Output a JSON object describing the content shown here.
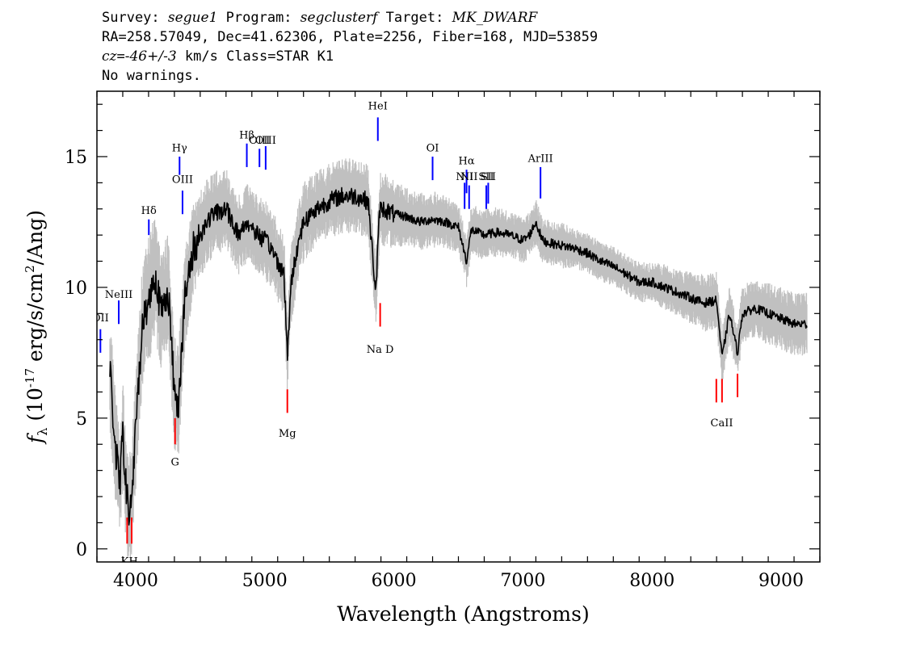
{
  "header": {
    "survey_label": "Survey:",
    "survey": "segue1",
    "program_label": "Program:",
    "program": "segclusterf",
    "target_label": "Target:",
    "target": "MK_DWARF",
    "line2": "RA=258.57049, Dec=41.62306, Plate=2256, Fiber=168, MJD=53859",
    "cz_label": "cz",
    "cz_eq": "=",
    "cz_value": "-46+/-3",
    "cz_unit": " km/s Class=STAR K1",
    "warnings": "No warnings."
  },
  "chart_data": {
    "type": "line",
    "xlabel": "Wavelength (Angstroms)",
    "ylabel": "f_λ (10^-17 erg/s/cm^2/Ang)",
    "xlim": [
      3700,
      9300
    ],
    "ylim": [
      -0.5,
      17.5
    ],
    "x_ticks": [
      4000,
      5000,
      6000,
      7000,
      8000,
      9000
    ],
    "y_ticks": [
      0,
      5,
      10,
      15
    ],
    "series": [
      {
        "role": "flux",
        "color": "#000000",
        "x": [
          3800,
          3850,
          3880,
          3900,
          3930,
          3950,
          3970,
          4000,
          4050,
          4100,
          4150,
          4200,
          4250,
          4300,
          4330,
          4380,
          4450,
          4500,
          4550,
          4600,
          4700,
          4800,
          4860,
          4900,
          4950,
          5000,
          5050,
          5100,
          5150,
          5175,
          5200,
          5250,
          5300,
          5400,
          5500,
          5600,
          5700,
          5800,
          5860,
          5890,
          5920,
          6000,
          6100,
          6200,
          6300,
          6400,
          6500,
          6563,
          6600,
          6700,
          6800,
          6900,
          7000,
          7050,
          7100,
          7150,
          7200,
          7300,
          7400,
          7500,
          7600,
          7700,
          7800,
          7900,
          8000,
          8100,
          8200,
          8300,
          8400,
          8500,
          8542,
          8600,
          8662,
          8700,
          8800,
          8900,
          9000,
          9100,
          9200
        ],
        "y": [
          6.8,
          3.5,
          2.5,
          4.5,
          2.0,
          1.3,
          2.0,
          4.5,
          8.5,
          9.5,
          10.5,
          9.0,
          10.0,
          6.0,
          5.5,
          9.5,
          11.5,
          12.0,
          12.5,
          12.8,
          13.0,
          12.0,
          12.5,
          12.3,
          12.0,
          11.8,
          11.5,
          11.0,
          10.5,
          7.2,
          10.0,
          11.5,
          12.5,
          13.0,
          13.3,
          13.5,
          13.5,
          13.3,
          9.8,
          13.0,
          13.0,
          12.8,
          12.7,
          12.5,
          12.6,
          12.5,
          12.3,
          11.0,
          12.2,
          12.0,
          12.1,
          12.0,
          11.8,
          12.0,
          12.5,
          11.8,
          11.7,
          11.6,
          11.5,
          11.3,
          11.0,
          10.8,
          10.5,
          10.2,
          10.2,
          10.0,
          9.8,
          9.6,
          9.4,
          9.5,
          7.3,
          9.0,
          7.5,
          9.0,
          9.2,
          9.0,
          8.8,
          8.6,
          8.6
        ]
      },
      {
        "role": "flux-error-envelope",
        "color": "#c0c0c0",
        "x": [
          3800,
          3850,
          3880,
          3900,
          3930,
          3950,
          3970,
          4000,
          4050,
          4100,
          4150,
          4200,
          4250,
          4300,
          4330,
          4380,
          4450,
          4500,
          4550,
          4600,
          4700,
          4800,
          4860,
          4900,
          4950,
          5000,
          5050,
          5100,
          5150,
          5175,
          5200,
          5250,
          5300,
          5400,
          5500,
          5600,
          5700,
          5800,
          5860,
          5890,
          5920,
          6000,
          6100,
          6200,
          6300,
          6400,
          6500,
          6563,
          6600,
          6700,
          6800,
          6900,
          7000,
          7050,
          7100,
          7150,
          7200,
          7300,
          7400,
          7500,
          7600,
          7700,
          7800,
          7900,
          8000,
          8100,
          8200,
          8300,
          8400,
          8500,
          8542,
          8600,
          8662,
          8700,
          8800,
          8900,
          9000,
          9100,
          9200
        ],
        "y": [
          6.8,
          3.5,
          2.5,
          4.5,
          2.0,
          1.3,
          2.0,
          4.5,
          8.5,
          9.5,
          10.5,
          9.0,
          10.0,
          6.0,
          5.5,
          9.5,
          11.5,
          12.0,
          12.5,
          12.8,
          13.0,
          12.0,
          12.5,
          12.3,
          12.0,
          11.8,
          11.5,
          11.0,
          10.5,
          7.2,
          10.0,
          11.5,
          12.5,
          13.0,
          13.3,
          13.5,
          13.5,
          13.3,
          9.8,
          13.0,
          13.0,
          12.8,
          12.7,
          12.5,
          12.6,
          12.5,
          12.3,
          11.0,
          12.2,
          12.0,
          12.1,
          12.0,
          11.8,
          12.0,
          12.5,
          11.8,
          11.7,
          11.6,
          11.5,
          11.3,
          11.0,
          10.8,
          10.5,
          10.2,
          10.2,
          10.0,
          9.8,
          9.6,
          9.4,
          9.5,
          7.3,
          9.0,
          7.5,
          9.0,
          9.2,
          9.0,
          8.8,
          8.6,
          8.6
        ],
        "half_width": [
          2.0,
          2.0,
          2.0,
          2.0,
          2.0,
          2.0,
          2.0,
          2.2,
          2.2,
          2.2,
          2.2,
          2.0,
          2.0,
          2.0,
          2.0,
          1.8,
          1.6,
          1.5,
          1.5,
          1.5,
          1.4,
          1.4,
          1.4,
          1.4,
          1.4,
          1.4,
          1.4,
          1.4,
          1.4,
          1.4,
          1.4,
          1.4,
          1.4,
          1.3,
          1.3,
          1.3,
          1.3,
          1.3,
          1.3,
          1.3,
          1.3,
          1.2,
          1.0,
          1.0,
          1.0,
          0.9,
          0.9,
          0.9,
          0.9,
          0.9,
          0.9,
          0.8,
          0.8,
          0.8,
          0.8,
          0.8,
          0.8,
          0.8,
          0.7,
          0.7,
          0.7,
          0.7,
          0.7,
          0.7,
          0.7,
          0.8,
          0.8,
          0.9,
          1.0,
          1.0,
          1.0,
          1.0,
          1.0,
          1.0,
          1.0,
          1.1,
          1.1,
          1.1,
          1.1
        ]
      }
    ],
    "emission_lines": [
      {
        "label": "OII",
        "x": 3727,
        "y0": 7.5,
        "y1": 8.4,
        "label_y": 8.7
      },
      {
        "label": "NeIII",
        "x": 3869,
        "y0": 8.6,
        "y1": 9.5,
        "label_y": 9.6
      },
      {
        "label": "Hδ",
        "x": 4102,
        "y0": 12.0,
        "y1": 12.6,
        "label_y": 12.8
      },
      {
        "label": "Hγ",
        "x": 4340,
        "y0": 14.3,
        "y1": 15.0,
        "label_y": 15.2
      },
      {
        "label": "OIII",
        "x": 4363,
        "y0": 12.8,
        "y1": 13.7,
        "label_y": 14.0
      },
      {
        "label": "Hβ",
        "x": 4861,
        "y0": 14.6,
        "y1": 15.5,
        "label_y": 15.7
      },
      {
        "label": "OIII",
        "x": 4959,
        "y0": 14.6,
        "y1": 15.3,
        "label_y": 15.5
      },
      {
        "label": "OIII",
        "x": 5007,
        "y0": 14.5,
        "y1": 15.4,
        "label_y": 15.5
      },
      {
        "label": "HeI",
        "x": 5876,
        "y0": 15.6,
        "y1": 16.5,
        "label_y": 16.8
      },
      {
        "label": "OI",
        "x": 6300,
        "y0": 14.1,
        "y1": 15.0,
        "label_y": 15.2
      },
      {
        "label": "NII",
        "x": 6548,
        "y0": 13.0,
        "y1": 14.0,
        "label_y": 14.1
      },
      {
        "label": "Hα",
        "x": 6563,
        "y0": 13.6,
        "y1": 14.5,
        "label_y": 14.7
      },
      {
        "label": "NII",
        "x": 6583,
        "y0": 13.0,
        "y1": 13.9,
        "label_y": 14.1
      },
      {
        "label": "SII",
        "x": 6716,
        "y0": 13.0,
        "y1": 13.9,
        "label_y": 14.1
      },
      {
        "label": "SII",
        "x": 6731,
        "y0": 13.2,
        "y1": 14.0,
        "label_y": 14.1
      },
      {
        "label": "ArIII",
        "x": 7136,
        "y0": 13.4,
        "y1": 14.6,
        "label_y": 14.8
      }
    ],
    "absorption_lines": [
      {
        "label": "K",
        "x": 3934,
        "y0": 0.2,
        "y1": 1.2
      },
      {
        "label": "H",
        "x": 3969,
        "y0": 0.2,
        "y1": 1.2
      },
      {
        "label": "KH",
        "x": 3952,
        "label_y": -0.3
      },
      {
        "label": "G",
        "x": 4305,
        "y0": 4.0,
        "y1": 5.0,
        "label_y": 3.5
      },
      {
        "label": "Mg",
        "x": 5175,
        "y0": 5.2,
        "y1": 6.1,
        "label_y": 4.6
      },
      {
        "label": "Na D",
        "x": 5894,
        "y0": 8.5,
        "y1": 9.4,
        "label_y": 7.8
      },
      {
        "label": "CaII",
        "x": 8498,
        "y0": 5.6,
        "y1": 6.5
      },
      {
        "label": "CaII",
        "x": 8542,
        "y0": 5.6,
        "y1": 6.5
      },
      {
        "label": "CaII",
        "x": 8662,
        "y0": 5.8,
        "y1": 6.7
      },
      {
        "label": "CaII",
        "x": 8540,
        "label_y": 5.0
      }
    ],
    "colors": {
      "emission": "#0000ff",
      "absorption": "#ff0000",
      "flux": "#000000",
      "error": "#c0c0c0"
    }
  }
}
